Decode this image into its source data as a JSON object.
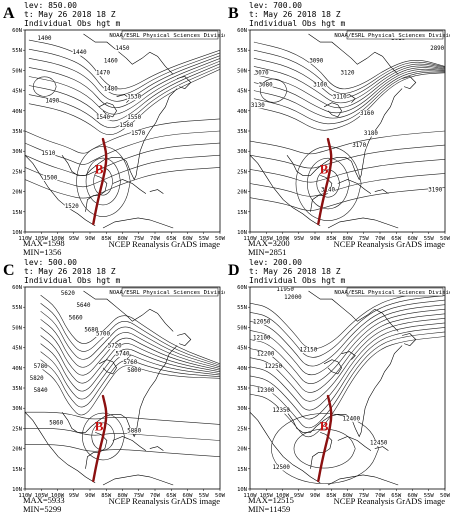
{
  "variable_label": "Individual Obs hgt m",
  "credit": "NOAA/ESRL Physical Sciences Division",
  "source": "NCEP Reanalysis GrADS image",
  "x_ticks": [
    "110W",
    "105W",
    "100W",
    "95W",
    "90W",
    "85W",
    "80W",
    "75W",
    "70W",
    "65W",
    "60W",
    "55W",
    "50W"
  ],
  "y_ticks": [
    "60N",
    "55N",
    "50N",
    "45N",
    "40N",
    "35N",
    "30N",
    "25N",
    "20N",
    "15N",
    "10N"
  ],
  "track_marker": "B",
  "track_color": "#8b1010",
  "panels": [
    {
      "letter": "A",
      "level": "lev: 850.00",
      "time": "t: May 26 2018 18 Z",
      "max": "MAX=1598",
      "min": "MIN=1356",
      "labels": [
        "1400",
        "1440",
        "1450",
        "1460",
        "1470",
        "1480",
        "1490",
        "1510",
        "1500",
        "1520",
        "1530",
        "1540",
        "1550",
        "1560",
        "1570"
      ]
    },
    {
      "letter": "B",
      "level": "lev: 700.00",
      "time": "t: May 26 2018 18 Z",
      "max": "MAX=3200",
      "min": "MIN=2851",
      "labels": [
        "3010",
        "2890",
        "3070",
        "3080",
        "3090",
        "3100",
        "3110",
        "3120",
        "3130",
        "3140",
        "3160",
        "3170",
        "3180",
        "3190"
      ]
    },
    {
      "letter": "C",
      "level": "lev: 500.00",
      "time": "t: May 26 2018 18 Z",
      "max": "MAX=5933",
      "min": "MIN=5299",
      "labels": [
        "5620",
        "5640",
        "5660",
        "5680",
        "5700",
        "5720",
        "5740",
        "5760",
        "5780",
        "5800",
        "5820",
        "5840",
        "5860",
        "5880"
      ]
    },
    {
      "letter": "D",
      "level": "lev: 200.00",
      "time": "t: May 26 2018 18 Z",
      "max": "MAX=12515",
      "min": "MIN=11459",
      "labels": [
        "11950",
        "12000",
        "12050",
        "12100",
        "12150",
        "12200",
        "12250",
        "12300",
        "12350",
        "12400",
        "12450",
        "12500"
      ]
    }
  ]
}
